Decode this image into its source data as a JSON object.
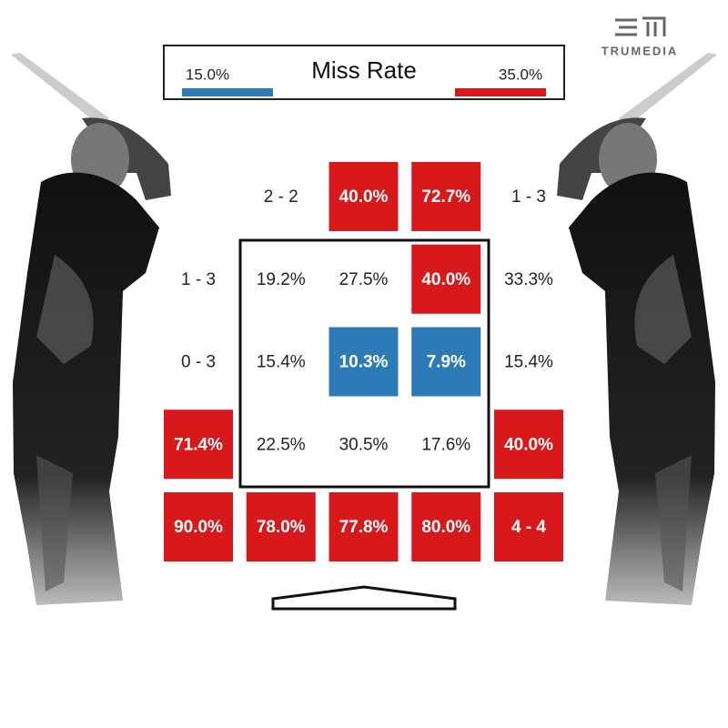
{
  "logo": "TRUMEDIA",
  "legend": {
    "title": "Miss Rate",
    "low": {
      "label": "15.0%",
      "color": "#2c7bb6"
    },
    "high": {
      "label": "35.0%",
      "color": "#d7191c"
    }
  },
  "grid": {
    "rows": [
      [
        null,
        {
          "label": "2 - 2"
        },
        {
          "label": "40.0%",
          "color": "#d7191c"
        },
        {
          "label": "72.7%",
          "color": "#d7191c"
        },
        {
          "label": "1 - 3"
        }
      ],
      [
        {
          "label": "1 - 3"
        },
        {
          "label": "19.2%"
        },
        {
          "label": "27.5%"
        },
        {
          "label": "40.0%",
          "color": "#d7191c"
        },
        {
          "label": "33.3%"
        }
      ],
      [
        {
          "label": "0 - 3"
        },
        {
          "label": "15.4%"
        },
        {
          "label": "10.3%",
          "color": "#2c7bb6"
        },
        {
          "label": "7.9%",
          "color": "#2c7bb6"
        },
        {
          "label": "15.4%"
        }
      ],
      [
        {
          "label": "71.4%",
          "color": "#d7191c"
        },
        {
          "label": "22.5%"
        },
        {
          "label": "30.5%"
        },
        {
          "label": "17.6%"
        },
        {
          "label": "40.0%",
          "color": "#d7191c"
        }
      ],
      [
        {
          "label": "90.0%",
          "color": "#d7191c"
        },
        {
          "label": "78.0%",
          "color": "#d7191c"
        },
        {
          "label": "77.8%",
          "color": "#d7191c"
        },
        {
          "label": "80.0%",
          "color": "#d7191c"
        },
        {
          "label": "4 - 4",
          "color": "#d7191c"
        }
      ]
    ]
  }
}
